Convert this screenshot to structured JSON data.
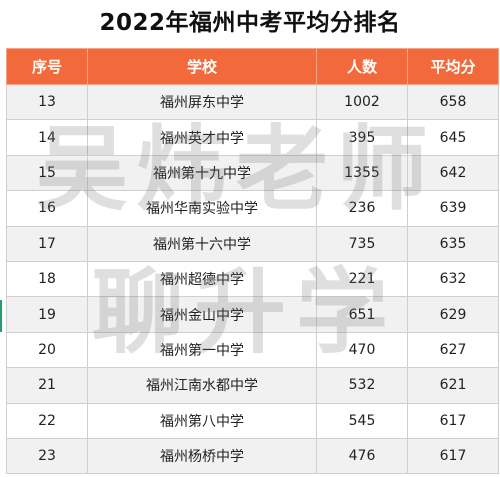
{
  "title": "2022年福州中考平均分排名",
  "columns": [
    "序号",
    "学校",
    "人数",
    "平均分"
  ],
  "rows": [
    {
      "rank": "13",
      "school": "福州屏东中学",
      "count": "1002",
      "avg": "658"
    },
    {
      "rank": "14",
      "school": "福州英才中学",
      "count": "395",
      "avg": "645"
    },
    {
      "rank": "15",
      "school": "福州第十九中学",
      "count": "1355",
      "avg": "642"
    },
    {
      "rank": "16",
      "school": "福州华南实验中学",
      "count": "236",
      "avg": "639"
    },
    {
      "rank": "17",
      "school": "福州第十六中学",
      "count": "735",
      "avg": "635"
    },
    {
      "rank": "18",
      "school": "福州超德中学",
      "count": "221",
      "avg": "632"
    },
    {
      "rank": "19",
      "school": "福州金山中学",
      "count": "651",
      "avg": "629"
    },
    {
      "rank": "20",
      "school": "福州第一中学",
      "count": "470",
      "avg": "627"
    },
    {
      "rank": "21",
      "school": "福州江南水都中学",
      "count": "532",
      "avg": "621"
    },
    {
      "rank": "22",
      "school": "福州第八中学",
      "count": "545",
      "avg": "617"
    },
    {
      "rank": "23",
      "school": "福州杨桥中学",
      "count": "476",
      "avg": "617"
    }
  ],
  "watermark": {
    "line1": "吴炜老师",
    "line2": "聊升学"
  },
  "colors": {
    "header_bg": "#f26a3c",
    "header_text": "#ffffff",
    "stripe": "#f1f1f1"
  }
}
